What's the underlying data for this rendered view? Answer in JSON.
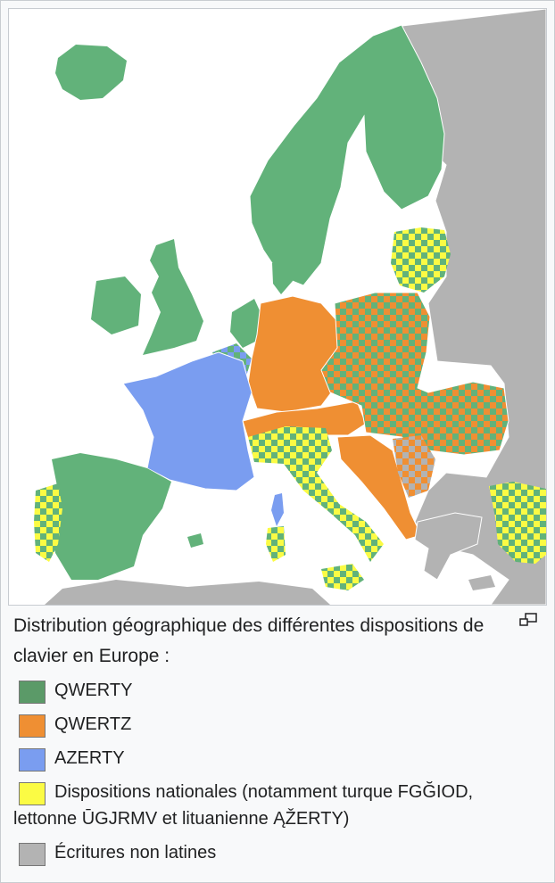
{
  "caption": "Distribution géographique des différentes dispositions de clavier en Europe :",
  "enlarge_icon": "magnify-clip-icon",
  "legend": [
    {
      "label": "QWERTY",
      "color": "#5b9a68"
    },
    {
      "label": "QWERTZ",
      "color": "#ef8f33"
    },
    {
      "label": "AZERTY",
      "color": "#7a9df0"
    },
    {
      "label": "Dispositions nationales (notamment turque FGĞIOD, lettonne ŪGJRMV et lituanienne ĄŽERTY)",
      "color": "#fbfb44"
    },
    {
      "label": "Écritures non latines",
      "color": "#b3b3b3"
    }
  ],
  "map_colors": {
    "qwerty": "#62b27a",
    "qwertz": "#ef8f33",
    "azerty": "#7a9df0",
    "national": "#fbfb44",
    "non_latin": "#b3b3b3",
    "sea": "#ffffff"
  }
}
